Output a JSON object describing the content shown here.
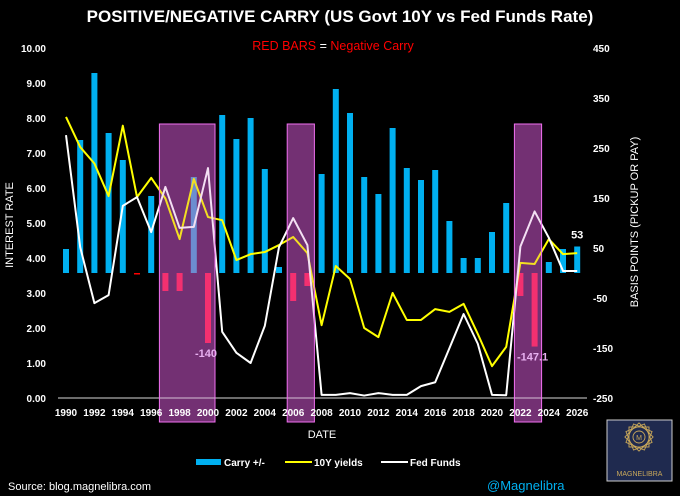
{
  "chart_data": {
    "type": "bar",
    "title": "POSITIVE/NEGATIVE CARRY (US Govt 10Y vs Fed Funds Rate)",
    "subtitle_parts": [
      "RED BARS",
      " = ",
      "Negative Carry"
    ],
    "xlabel": "DATE",
    "ylabel": "INTEREST RATE",
    "y2label": "BASIS POINTS (PICKUP OR PAY)",
    "ylim": [
      0,
      10
    ],
    "y2lim": [
      -250,
      450
    ],
    "yticks": [
      "0.00",
      "1.00",
      "2.00",
      "3.00",
      "4.00",
      "5.00",
      "6.00",
      "7.00",
      "8.00",
      "9.00",
      "10.00"
    ],
    "y2ticks": [
      "-250",
      "-150",
      "-50",
      "50",
      "150",
      "250",
      "350",
      "450"
    ],
    "xticks": [
      "1990",
      "1992",
      "1994",
      "1996",
      "1998",
      "2000",
      "2002",
      "2004",
      "2006",
      "2008",
      "2010",
      "2012",
      "2014",
      "2016",
      "2018",
      "2020",
      "2022",
      "2024",
      "2026"
    ],
    "x": [
      1990,
      1991,
      1992,
      1993,
      1994,
      1995,
      1996,
      1997,
      1998,
      1999,
      2000,
      2001,
      2002,
      2003,
      2004,
      2005,
      2006,
      2007,
      2008,
      2009,
      2010,
      2011,
      2012,
      2013,
      2014,
      2015,
      2016,
      2017,
      2018,
      2019,
      2020,
      2021,
      2022,
      2023,
      2024,
      2025,
      2026
    ],
    "series": [
      {
        "name": "Carry +/-",
        "axis": "right",
        "kind": "bar",
        "color": "#00b0f0",
        "negative_color": "#ff2a60",
        "values": [
          48,
          266,
          400,
          280,
          226,
          -3,
          154,
          -36,
          -36,
          192,
          -140,
          316,
          268,
          310,
          208,
          12,
          -56,
          -26,
          198,
          368,
          320,
          192,
          158,
          290,
          210,
          186,
          206,
          104,
          30,
          30,
          82,
          140,
          -46,
          -147.1,
          22,
          48,
          53
        ]
      },
      {
        "name": "10Y yields",
        "axis": "left",
        "kind": "line",
        "color": "#ffff00",
        "values": [
          8.03,
          7.17,
          6.7,
          5.77,
          7.78,
          5.74,
          6.29,
          5.7,
          4.54,
          6.26,
          5.17,
          5.08,
          3.94,
          4.11,
          4.17,
          4.37,
          4.6,
          4.14,
          2.08,
          3.77,
          3.4,
          2.0,
          1.74,
          3.0,
          2.23,
          2.23,
          2.54,
          2.46,
          2.69,
          1.83,
          0.91,
          1.46,
          3.86,
          3.83,
          4.54,
          4.11,
          4.14
        ]
      },
      {
        "name": "Fed Funds",
        "axis": "left",
        "kind": "line",
        "color": "#ffffff",
        "values": [
          7.51,
          4.31,
          2.71,
          2.94,
          5.49,
          5.74,
          4.74,
          6.03,
          4.86,
          4.89,
          6.57,
          1.89,
          1.29,
          1.0,
          2.06,
          4.31,
          5.14,
          4.37,
          0.09,
          0.09,
          0.14,
          0.07,
          0.14,
          0.09,
          0.09,
          0.34,
          0.45,
          1.42,
          2.4,
          1.55,
          0.09,
          0.08,
          4.33,
          5.33,
          4.58,
          3.63,
          3.63
        ]
      }
    ],
    "data_labels": [
      {
        "x": 2000,
        "text": "-140"
      },
      {
        "x": 2023,
        "text": "-147.1"
      },
      {
        "x": 2026,
        "text": "53"
      }
    ],
    "highlights": [
      [
        1997,
        2000
      ],
      [
        2006,
        2007
      ],
      [
        2022,
        2023
      ]
    ],
    "legend": "bottom",
    "grid": false
  },
  "footer": {
    "source": "Source:  blog.magnelibra.com",
    "handle": "@Magnelibra",
    "logo_text": "MAGNELIBRA"
  }
}
